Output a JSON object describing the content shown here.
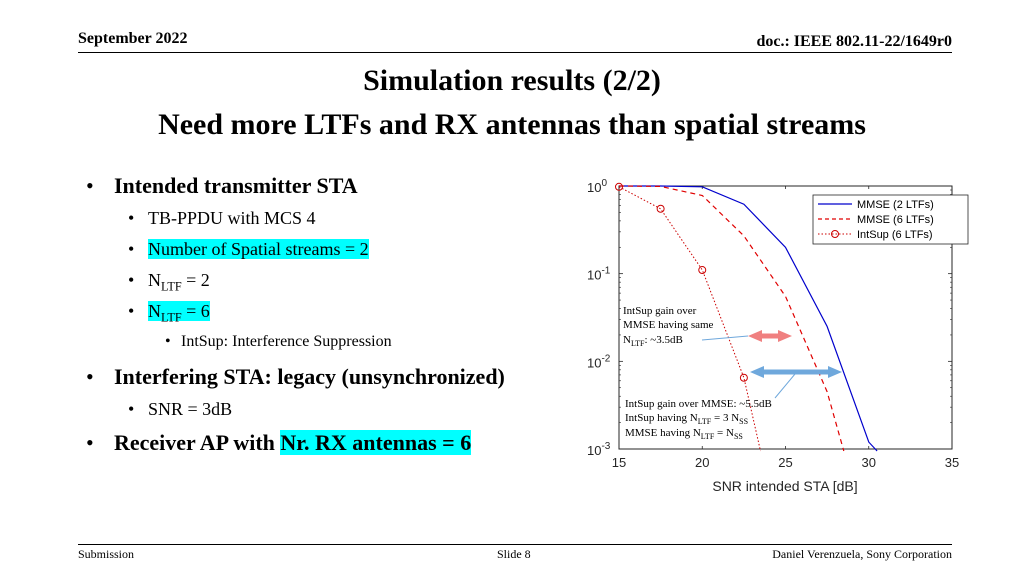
{
  "header": {
    "date": "September 2022",
    "doc": "doc.: IEEE 802.11-22/1649r0"
  },
  "title": {
    "line1": "Simulation results (2/2)",
    "line2": "Need more LTFs and RX antennas than spatial streams"
  },
  "bullets": {
    "b1": "Intended transmitter STA",
    "b1a": "TB-PPDU with MCS 4",
    "b1b": "Number of Spatial streams = 2",
    "b1c_pre": "N",
    "b1c_sub": "LTF",
    "b1c_post": " = 2",
    "b1d_pre": "N",
    "b1d_sub": "LTF",
    "b1d_post": " = 6",
    "b1e": "IntSup: Interference Suppression",
    "b2": "Interfering STA: legacy (unsynchronized)",
    "b2a": "SNR = 3dB",
    "b3_pre": "Receiver AP with ",
    "b3_hl": "Nr. RX antennas = 6"
  },
  "footer": {
    "left": "Submission",
    "center": "Slide 8",
    "right": "Daniel Verenzuela, Sony Corporation"
  },
  "colors": {
    "mmse2": "#0000cc",
    "mmse6": "#e00000",
    "intsup": "#cc0000",
    "arrow_red": "#f08080",
    "arrow_blue": "#6fa8dc",
    "highlight": "#00ffff"
  },
  "chart_data": {
    "type": "line",
    "x_scale": "linear",
    "y_scale": "log",
    "xlim": [
      15,
      35
    ],
    "ylim": [
      0.001,
      1
    ],
    "xlabel": "SNR intended STA [dB]",
    "ylabel": "",
    "xticks": [
      "15",
      "20",
      "25",
      "30",
      "35"
    ],
    "yticks": [
      {
        "base": "10",
        "exp": "0",
        "value": 1
      },
      {
        "base": "10",
        "exp": "-1",
        "value": 0.1
      },
      {
        "base": "10",
        "exp": "-2",
        "value": 0.01
      },
      {
        "base": "10",
        "exp": "-3",
        "value": 0.001
      }
    ],
    "grid": false,
    "legend": "top-right",
    "series": [
      {
        "name": "MMSE (2 LTFs)",
        "style": "solid",
        "color": "#0000cc",
        "x": [
          15,
          17.5,
          20,
          22.5,
          25,
          27.5,
          30,
          30.5
        ],
        "y": [
          1,
          1,
          0.98,
          0.62,
          0.2,
          0.025,
          0.0012,
          0.00095
        ]
      },
      {
        "name": "MMSE (6 LTFs)",
        "style": "dashed",
        "color": "#e00000",
        "x": [
          15,
          17.5,
          20,
          22.5,
          25,
          27.5,
          28.5
        ],
        "y": [
          1,
          0.99,
          0.78,
          0.27,
          0.055,
          0.0045,
          0.00095
        ]
      },
      {
        "name": "IntSup (6 LTFs)",
        "style": "dotted-markers",
        "color": "#cc0000",
        "x": [
          15,
          17.5,
          20,
          22.5,
          23.5
        ],
        "y": [
          0.98,
          0.55,
          0.11,
          0.0065,
          0.00095
        ]
      }
    ],
    "annotations": {
      "a1_line1": "IntSup gain over",
      "a1_line2": "MMSE having same",
      "a1_pre": "N",
      "a1_sub": "LTF",
      "a1_post": ": ~3.5dB",
      "a2_line1": "IntSup gain over MMSE: ~5.5dB",
      "a2_pre": "IntSup having N",
      "a2_sub1": "LTF",
      "a2_mid": " = 3 N",
      "a2_sub2": "SS",
      "a2b_pre": "MMSE having N",
      "a2b_sub1": "LTF",
      "a2b_mid": " = N",
      "a2b_sub2": "SS"
    }
  }
}
